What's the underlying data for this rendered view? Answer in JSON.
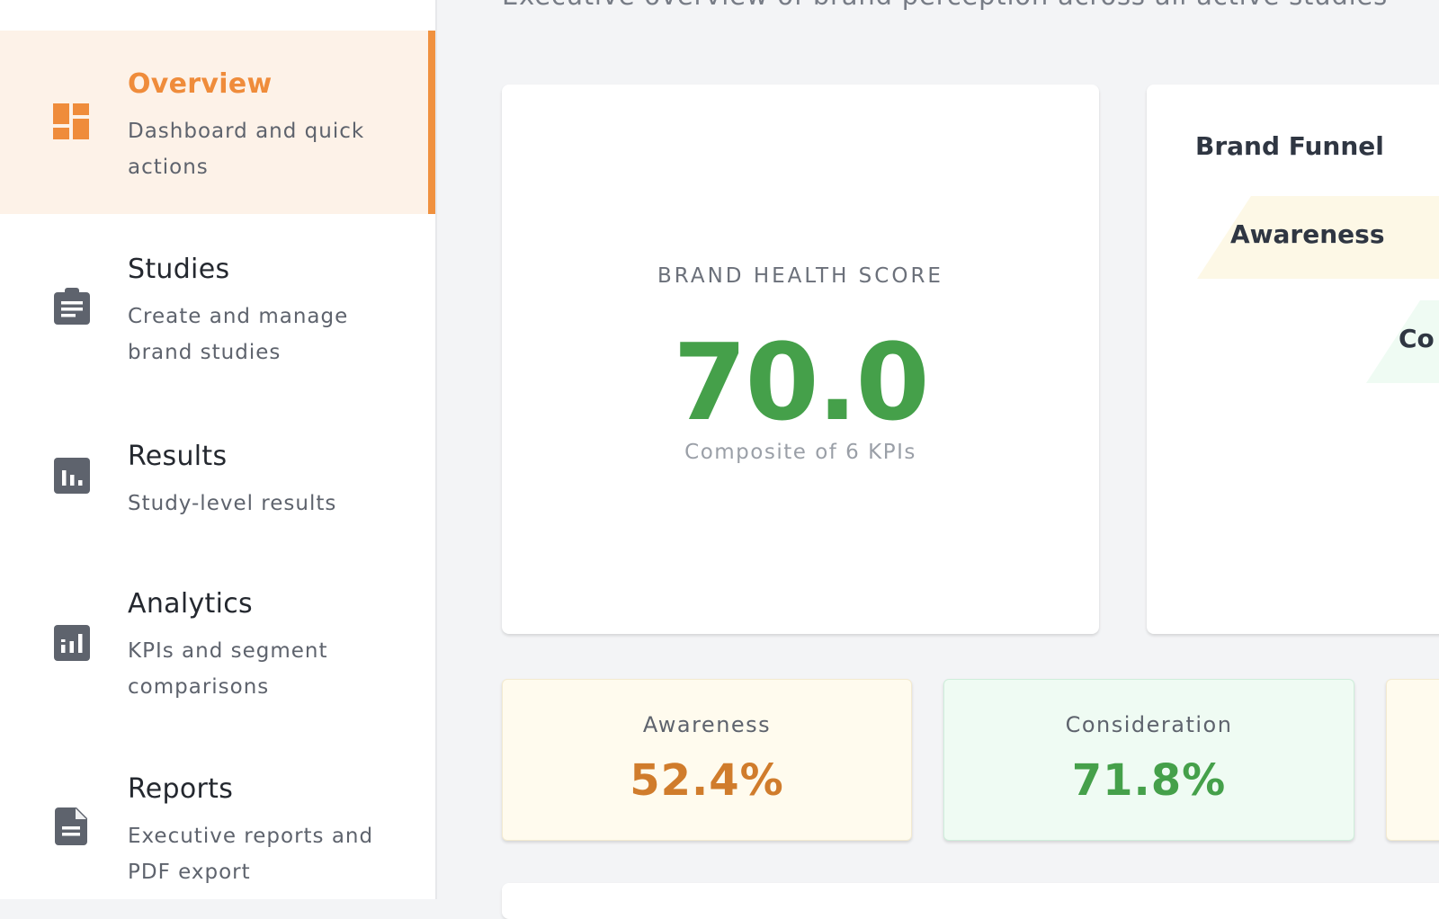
{
  "sidebar": {
    "items": [
      {
        "title": "Overview",
        "desc": "Dashboard and quick actions",
        "icon": "dashboard-icon",
        "active": true
      },
      {
        "title": "Studies",
        "desc": "Create and manage brand studies",
        "icon": "clipboard-icon",
        "active": false
      },
      {
        "title": "Results",
        "desc": "Study-level results",
        "icon": "bar-chart-icon",
        "active": false
      },
      {
        "title": "Analytics",
        "desc": "KPIs and segment comparisons",
        "icon": "analytics-icon",
        "active": false
      },
      {
        "title": "Reports",
        "desc": "Executive reports and PDF export",
        "icon": "document-icon",
        "active": false
      }
    ]
  },
  "header": {
    "subtitle": "Executive overview of brand perception across all active studies"
  },
  "score_card": {
    "label": "BRAND HEALTH SCORE",
    "value": "70.0",
    "sub": "Composite of 6 KPIs"
  },
  "funnel": {
    "title": "Brand Funnel",
    "steps": [
      {
        "label": "Awareness"
      },
      {
        "label": "Co"
      }
    ]
  },
  "kpis": [
    {
      "label": "Awareness",
      "value": "52.4%"
    },
    {
      "label": "Consideration",
      "value": "71.8%"
    }
  ],
  "colors": {
    "accent": "#ef8c3b",
    "active_bg": "#fdf2e8",
    "good_green": "#45a04a",
    "awareness_orange": "#d07c2c",
    "awareness_bg": "#fffbee",
    "consideration_bg": "#effbf3"
  }
}
